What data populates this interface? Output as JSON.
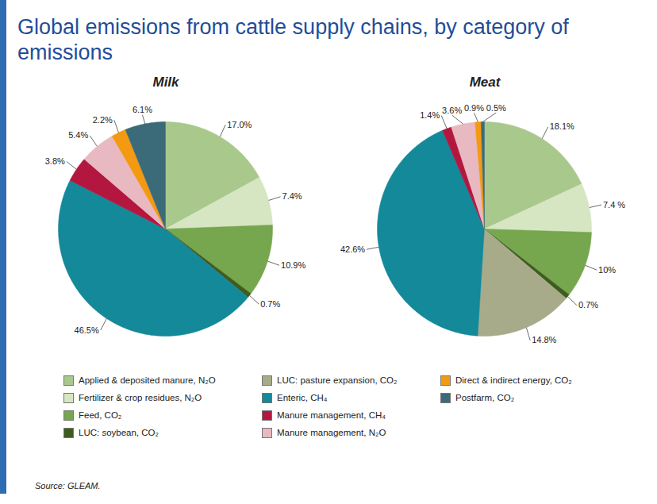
{
  "title": "Global emissions from cattle supply chains, by category of emissions",
  "source": "Source: GLEAM.",
  "legend": "bottom",
  "chart_data": [
    {
      "type": "pie",
      "title": "Milk",
      "categories": [
        "Applied & deposited manure, N₂O",
        "Fertilizer & crop residues, N₂O",
        "Feed, CO₂",
        "LUC: soybean, CO₂",
        "Enteric, CH₄",
        "Manure management, CH₄",
        "Manure management, N₂O",
        "Direct & indirect energy, CO₂",
        "Postfarm, CO₂"
      ],
      "values": [
        17.0,
        7.4,
        10.9,
        0.7,
        46.5,
        3.8,
        5.4,
        2.2,
        6.1
      ],
      "value_labels": [
        "17.0%",
        "7.4%",
        "10.9%",
        "0.7%",
        "46.5%",
        "3.8%",
        "5.4%",
        "2.2%",
        "6.1%"
      ],
      "colors": [
        "#a9c88c",
        "#d6e6c3",
        "#76a64e",
        "#3f5c1f",
        "#13899a",
        "#b3173f",
        "#e8b9c0",
        "#f39a12",
        "#3b6b78"
      ],
      "data_labels": true
    },
    {
      "type": "pie",
      "title": "Meat",
      "categories": [
        "Applied & deposited manure, N₂O",
        "Fertilizer & crop residues, N₂O",
        "Feed, CO₂",
        "LUC: soybean, CO₂",
        "LUC: pasture expansion, CO₂",
        "Enteric, CH₄",
        "Manure management, CH₄",
        "Manure management, N₂O",
        "Direct & indirect energy, CO₂",
        "Postfarm, CO₂"
      ],
      "values": [
        18.1,
        7.4,
        10,
        0.7,
        14.8,
        42.6,
        1.4,
        3.6,
        0.9,
        0.5
      ],
      "value_labels": [
        "18.1%",
        "7.4 %",
        "10%",
        "0.7%",
        "14.8%",
        "42.6%",
        "1.4%",
        "3.6%",
        "0.9%",
        "0.5%"
      ],
      "colors": [
        "#a9c88c",
        "#d6e6c3",
        "#76a64e",
        "#3f5c1f",
        "#a8ab89",
        "#13899a",
        "#b3173f",
        "#e8b9c0",
        "#f39a12",
        "#3b6b78"
      ],
      "data_labels": true
    }
  ]
}
